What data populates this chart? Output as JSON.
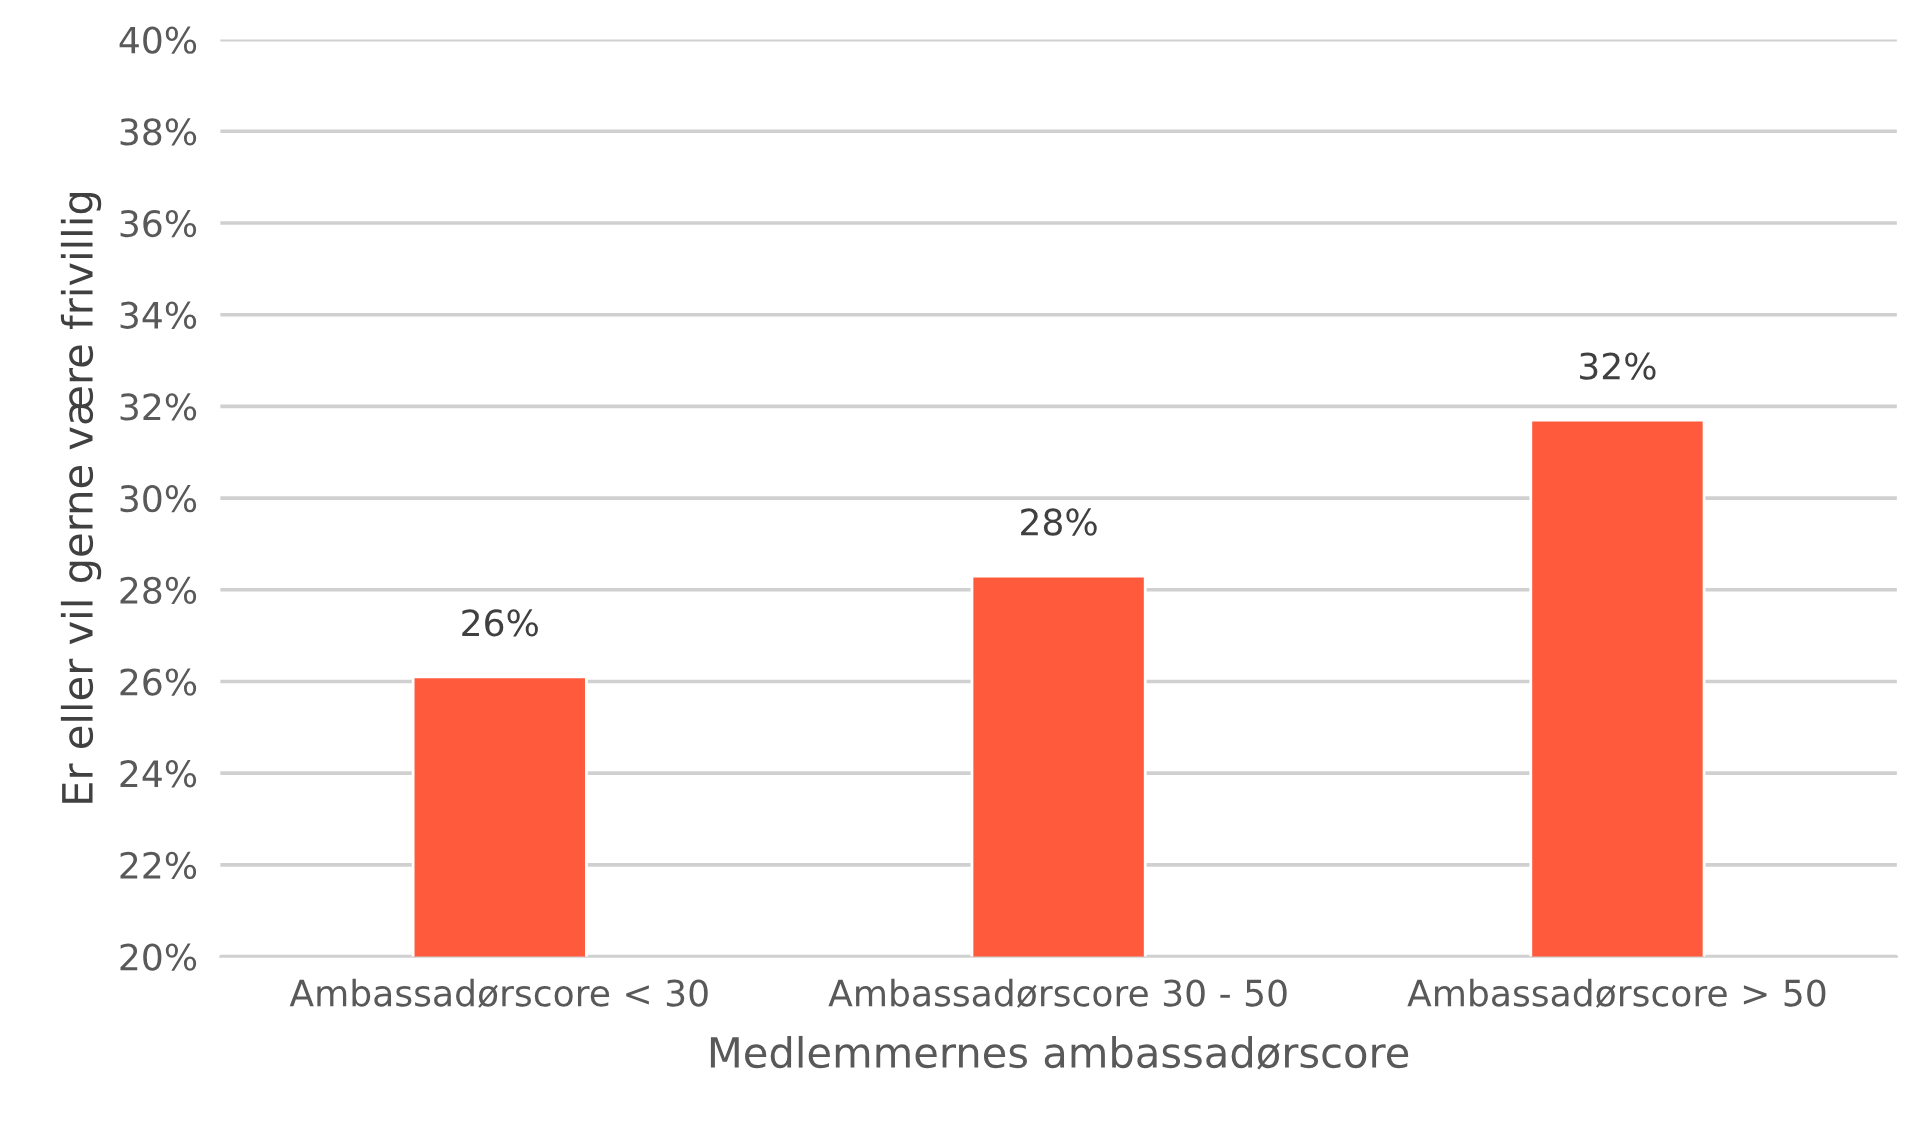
{
  "chart_data": {
    "type": "bar",
    "xlabel": "Medlemmernes ambassadørscore",
    "ylabel": "Er eller vil gerne være frivillig",
    "categories": [
      "Ambassadørscore < 30",
      "Ambassadørscore 30 - 50",
      "Ambassadørscore > 50"
    ],
    "values": [
      26.1,
      28.3,
      31.7
    ],
    "value_labels": [
      "26%",
      "28%",
      "32%"
    ],
    "color": "#ff5a3c",
    "ylim": [
      20,
      40
    ],
    "yticks": [
      {
        "value": 20,
        "label": "20%"
      },
      {
        "value": 22,
        "label": "22%"
      },
      {
        "value": 24,
        "label": "24%"
      },
      {
        "value": 26,
        "label": "26%"
      },
      {
        "value": 28,
        "label": "28%"
      },
      {
        "value": 30,
        "label": "30%"
      },
      {
        "value": 32,
        "label": "32%"
      },
      {
        "value": 34,
        "label": "34%"
      },
      {
        "value": 36,
        "label": "36%"
      },
      {
        "value": 38,
        "label": "38%"
      },
      {
        "value": 40,
        "label": "40%"
      }
    ],
    "grid": "y"
  }
}
